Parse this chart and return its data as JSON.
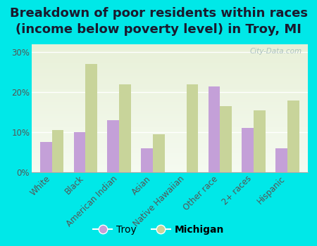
{
  "title": "Breakdown of poor residents within races\n(income below poverty level) in Troy, MI",
  "categories": [
    "White",
    "Black",
    "American Indian",
    "Asian",
    "Native Hawaiian",
    "Other race",
    "2+ races",
    "Hispanic"
  ],
  "troy_values": [
    7.5,
    10.0,
    13.0,
    6.0,
    0.0,
    21.5,
    11.0,
    6.0
  ],
  "michigan_values": [
    10.5,
    27.0,
    22.0,
    9.5,
    22.0,
    16.5,
    15.5,
    18.0
  ],
  "troy_color": "#c4a0d8",
  "michigan_color": "#c8d49a",
  "background_color": "#00e8e8",
  "plot_bg_top": "#e8f0d8",
  "plot_bg_bottom": "#f5faf0",
  "ylim": [
    0,
    32
  ],
  "yticks": [
    0,
    10,
    20,
    30
  ],
  "ytick_labels": [
    "0%",
    "10%",
    "20%",
    "30%"
  ],
  "watermark": "City-Data.com",
  "legend_troy": "Troy",
  "legend_michigan": "Michigan",
  "title_fontsize": 13,
  "tick_fontsize": 8.5,
  "label_color": "#555555"
}
